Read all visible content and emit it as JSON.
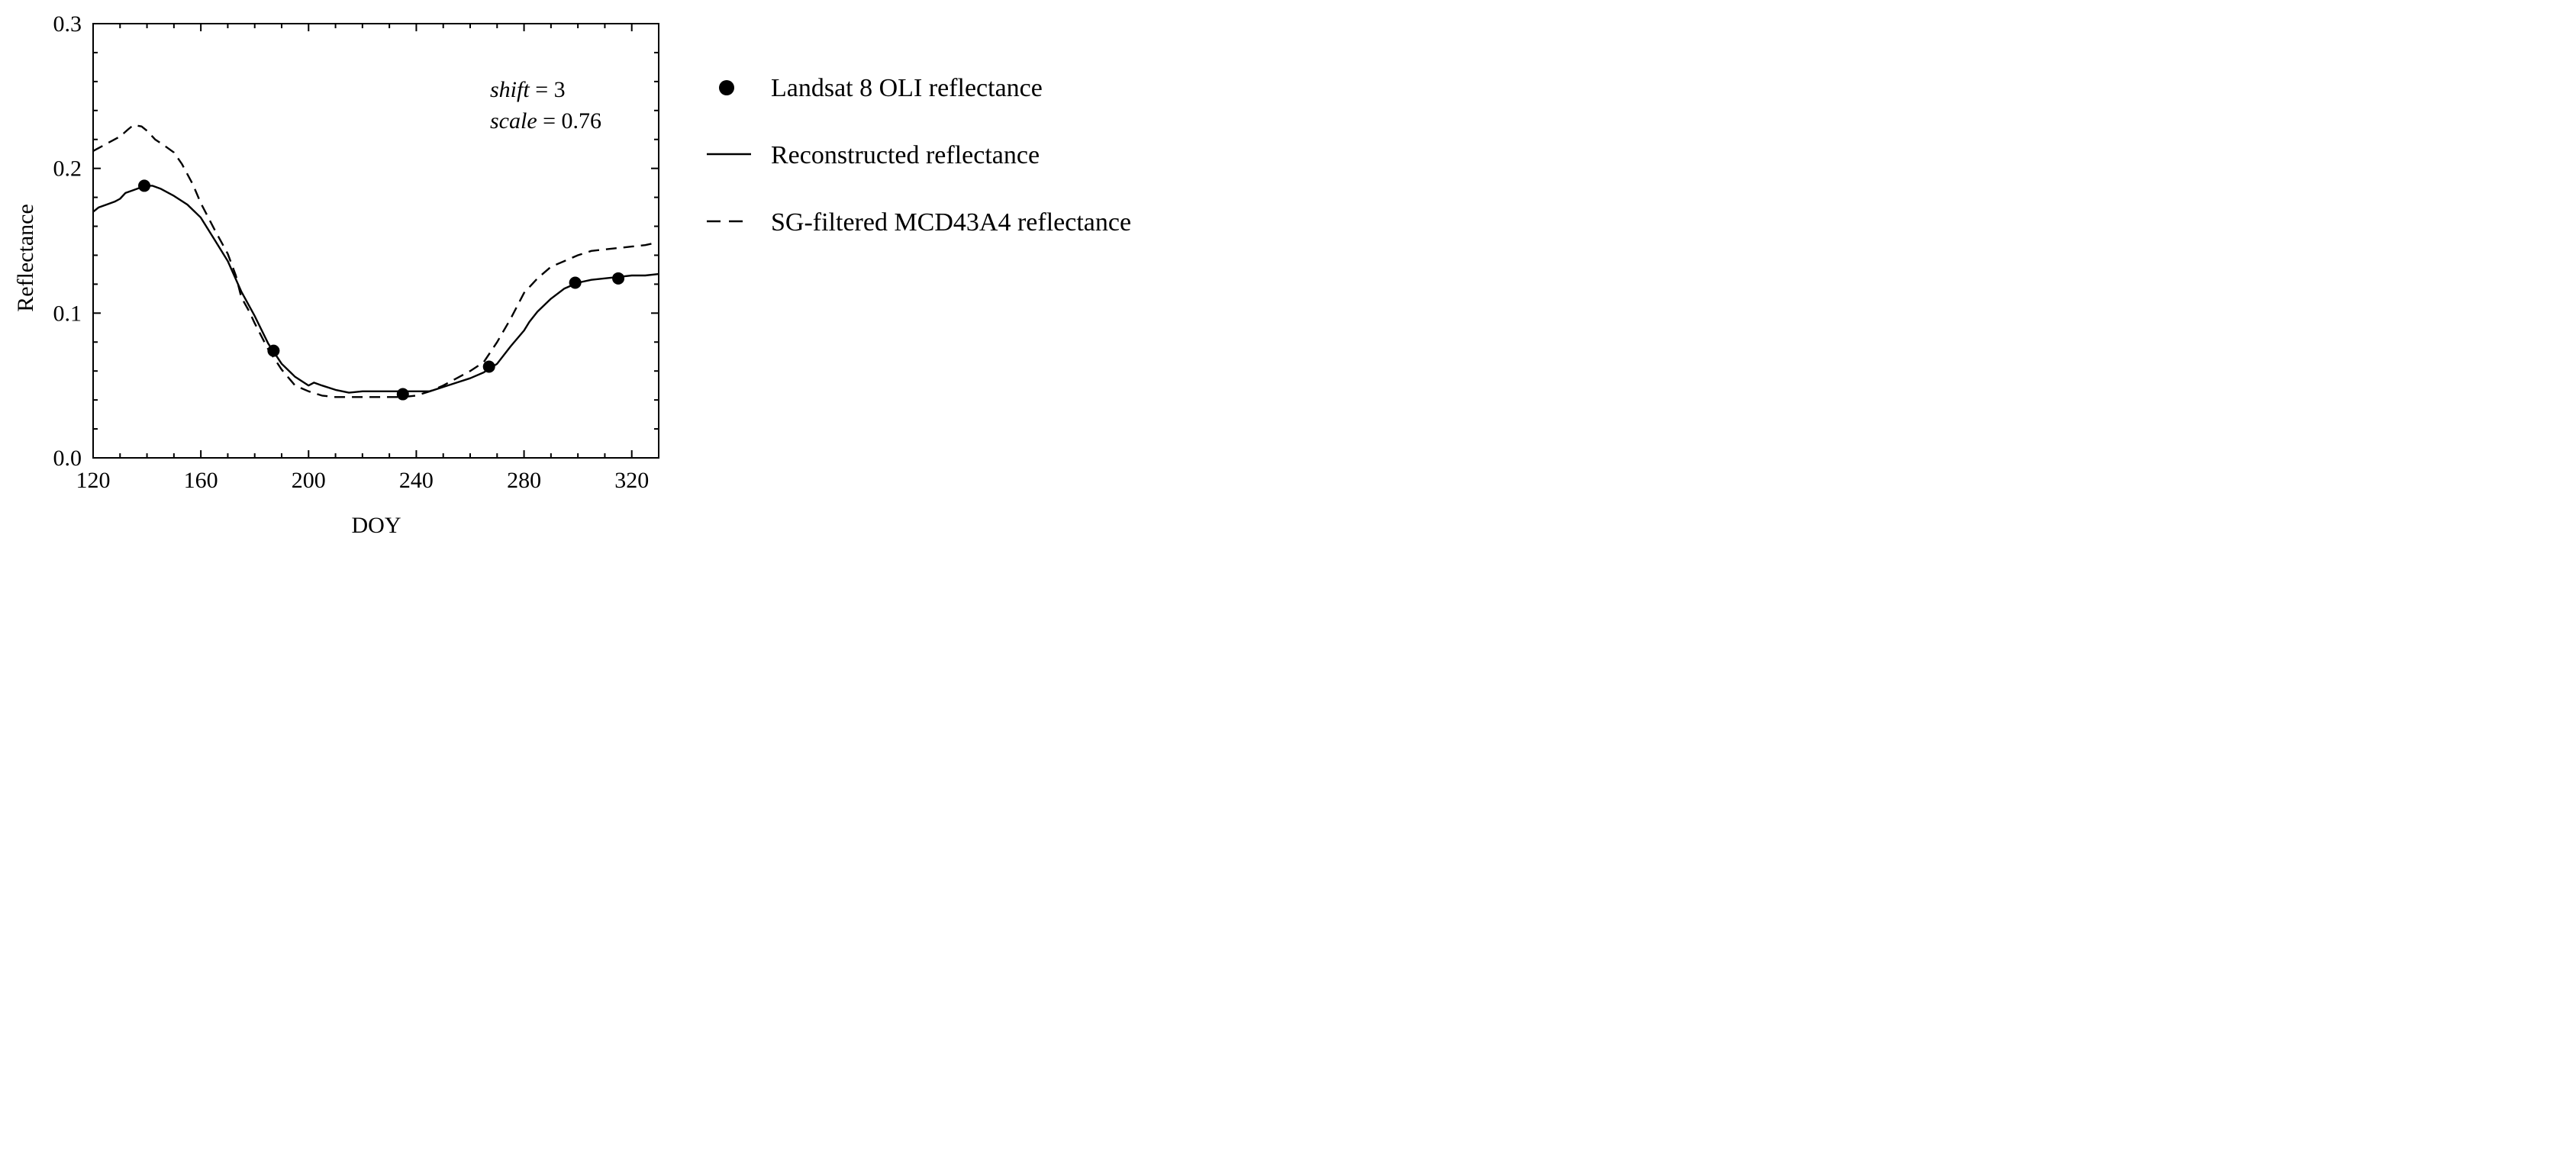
{
  "chart_data": {
    "type": "line",
    "xlabel": "DOY",
    "ylabel": "Reflectance",
    "xlim": [
      120,
      330
    ],
    "ylim": [
      0.0,
      0.3
    ],
    "x_ticks": [
      120,
      160,
      200,
      240,
      280,
      320
    ],
    "x_tick_labels": [
      "120",
      "160",
      "200",
      "240",
      "280",
      "320"
    ],
    "x_minor_step": 10,
    "y_ticks": [
      0.0,
      0.1,
      0.2,
      0.3
    ],
    "y_tick_labels": [
      "0.0",
      "0.1",
      "0.2",
      "0.3"
    ],
    "y_minor_step": 0.02,
    "annotation": {
      "shift_label": "shift",
      "shift_value": " = 3",
      "scale_label": "scale",
      "scale_value": " = 0.76"
    },
    "legend_position": "right",
    "series": [
      {
        "name": "Landsat 8 OLI reflectance",
        "style": "markers",
        "x": [
          139,
          187,
          235,
          267,
          299,
          315
        ],
        "y": [
          0.188,
          0.074,
          0.044,
          0.063,
          0.121,
          0.124
        ]
      },
      {
        "name": "Reconstructed reflectance",
        "style": "solid",
        "x": [
          120,
          122,
          125,
          128,
          130,
          132,
          135,
          138,
          140,
          142,
          145,
          150,
          155,
          160,
          165,
          170,
          175,
          180,
          185,
          190,
          195,
          200,
          202,
          205,
          210,
          215,
          220,
          225,
          230,
          235,
          240,
          245,
          250,
          255,
          260,
          265,
          270,
          275,
          280,
          282,
          285,
          290,
          295,
          300,
          305,
          310,
          315,
          320,
          325,
          330
        ],
        "y": [
          0.17,
          0.173,
          0.175,
          0.177,
          0.179,
          0.183,
          0.185,
          0.187,
          0.188,
          0.188,
          0.186,
          0.181,
          0.175,
          0.166,
          0.151,
          0.136,
          0.115,
          0.098,
          0.079,
          0.065,
          0.056,
          0.05,
          0.052,
          0.05,
          0.047,
          0.045,
          0.046,
          0.046,
          0.046,
          0.046,
          0.046,
          0.046,
          0.049,
          0.052,
          0.055,
          0.059,
          0.065,
          0.077,
          0.088,
          0.094,
          0.101,
          0.11,
          0.117,
          0.121,
          0.123,
          0.124,
          0.125,
          0.126,
          0.126,
          0.127
        ]
      },
      {
        "name": "SG-filtered MCD43A4 reflectance",
        "style": "dashed",
        "x": [
          120,
          125,
          130,
          133,
          135,
          138,
          140,
          143,
          147,
          150,
          153,
          157,
          160,
          165,
          170,
          173,
          175,
          178,
          180,
          185,
          190,
          195,
          200,
          205,
          210,
          215,
          220,
          225,
          230,
          235,
          240,
          245,
          250,
          255,
          260,
          265,
          270,
          275,
          280,
          285,
          290,
          295,
          300,
          305,
          310,
          315,
          320,
          325,
          330
        ],
        "y": [
          0.212,
          0.217,
          0.222,
          0.227,
          0.23,
          0.229,
          0.226,
          0.22,
          0.215,
          0.211,
          0.203,
          0.189,
          0.176,
          0.158,
          0.141,
          0.126,
          0.111,
          0.101,
          0.093,
          0.075,
          0.061,
          0.05,
          0.046,
          0.043,
          0.042,
          0.042,
          0.042,
          0.042,
          0.042,
          0.042,
          0.043,
          0.046,
          0.05,
          0.055,
          0.06,
          0.066,
          0.08,
          0.096,
          0.114,
          0.124,
          0.132,
          0.136,
          0.14,
          0.143,
          0.144,
          0.145,
          0.146,
          0.147,
          0.149
        ]
      }
    ]
  }
}
